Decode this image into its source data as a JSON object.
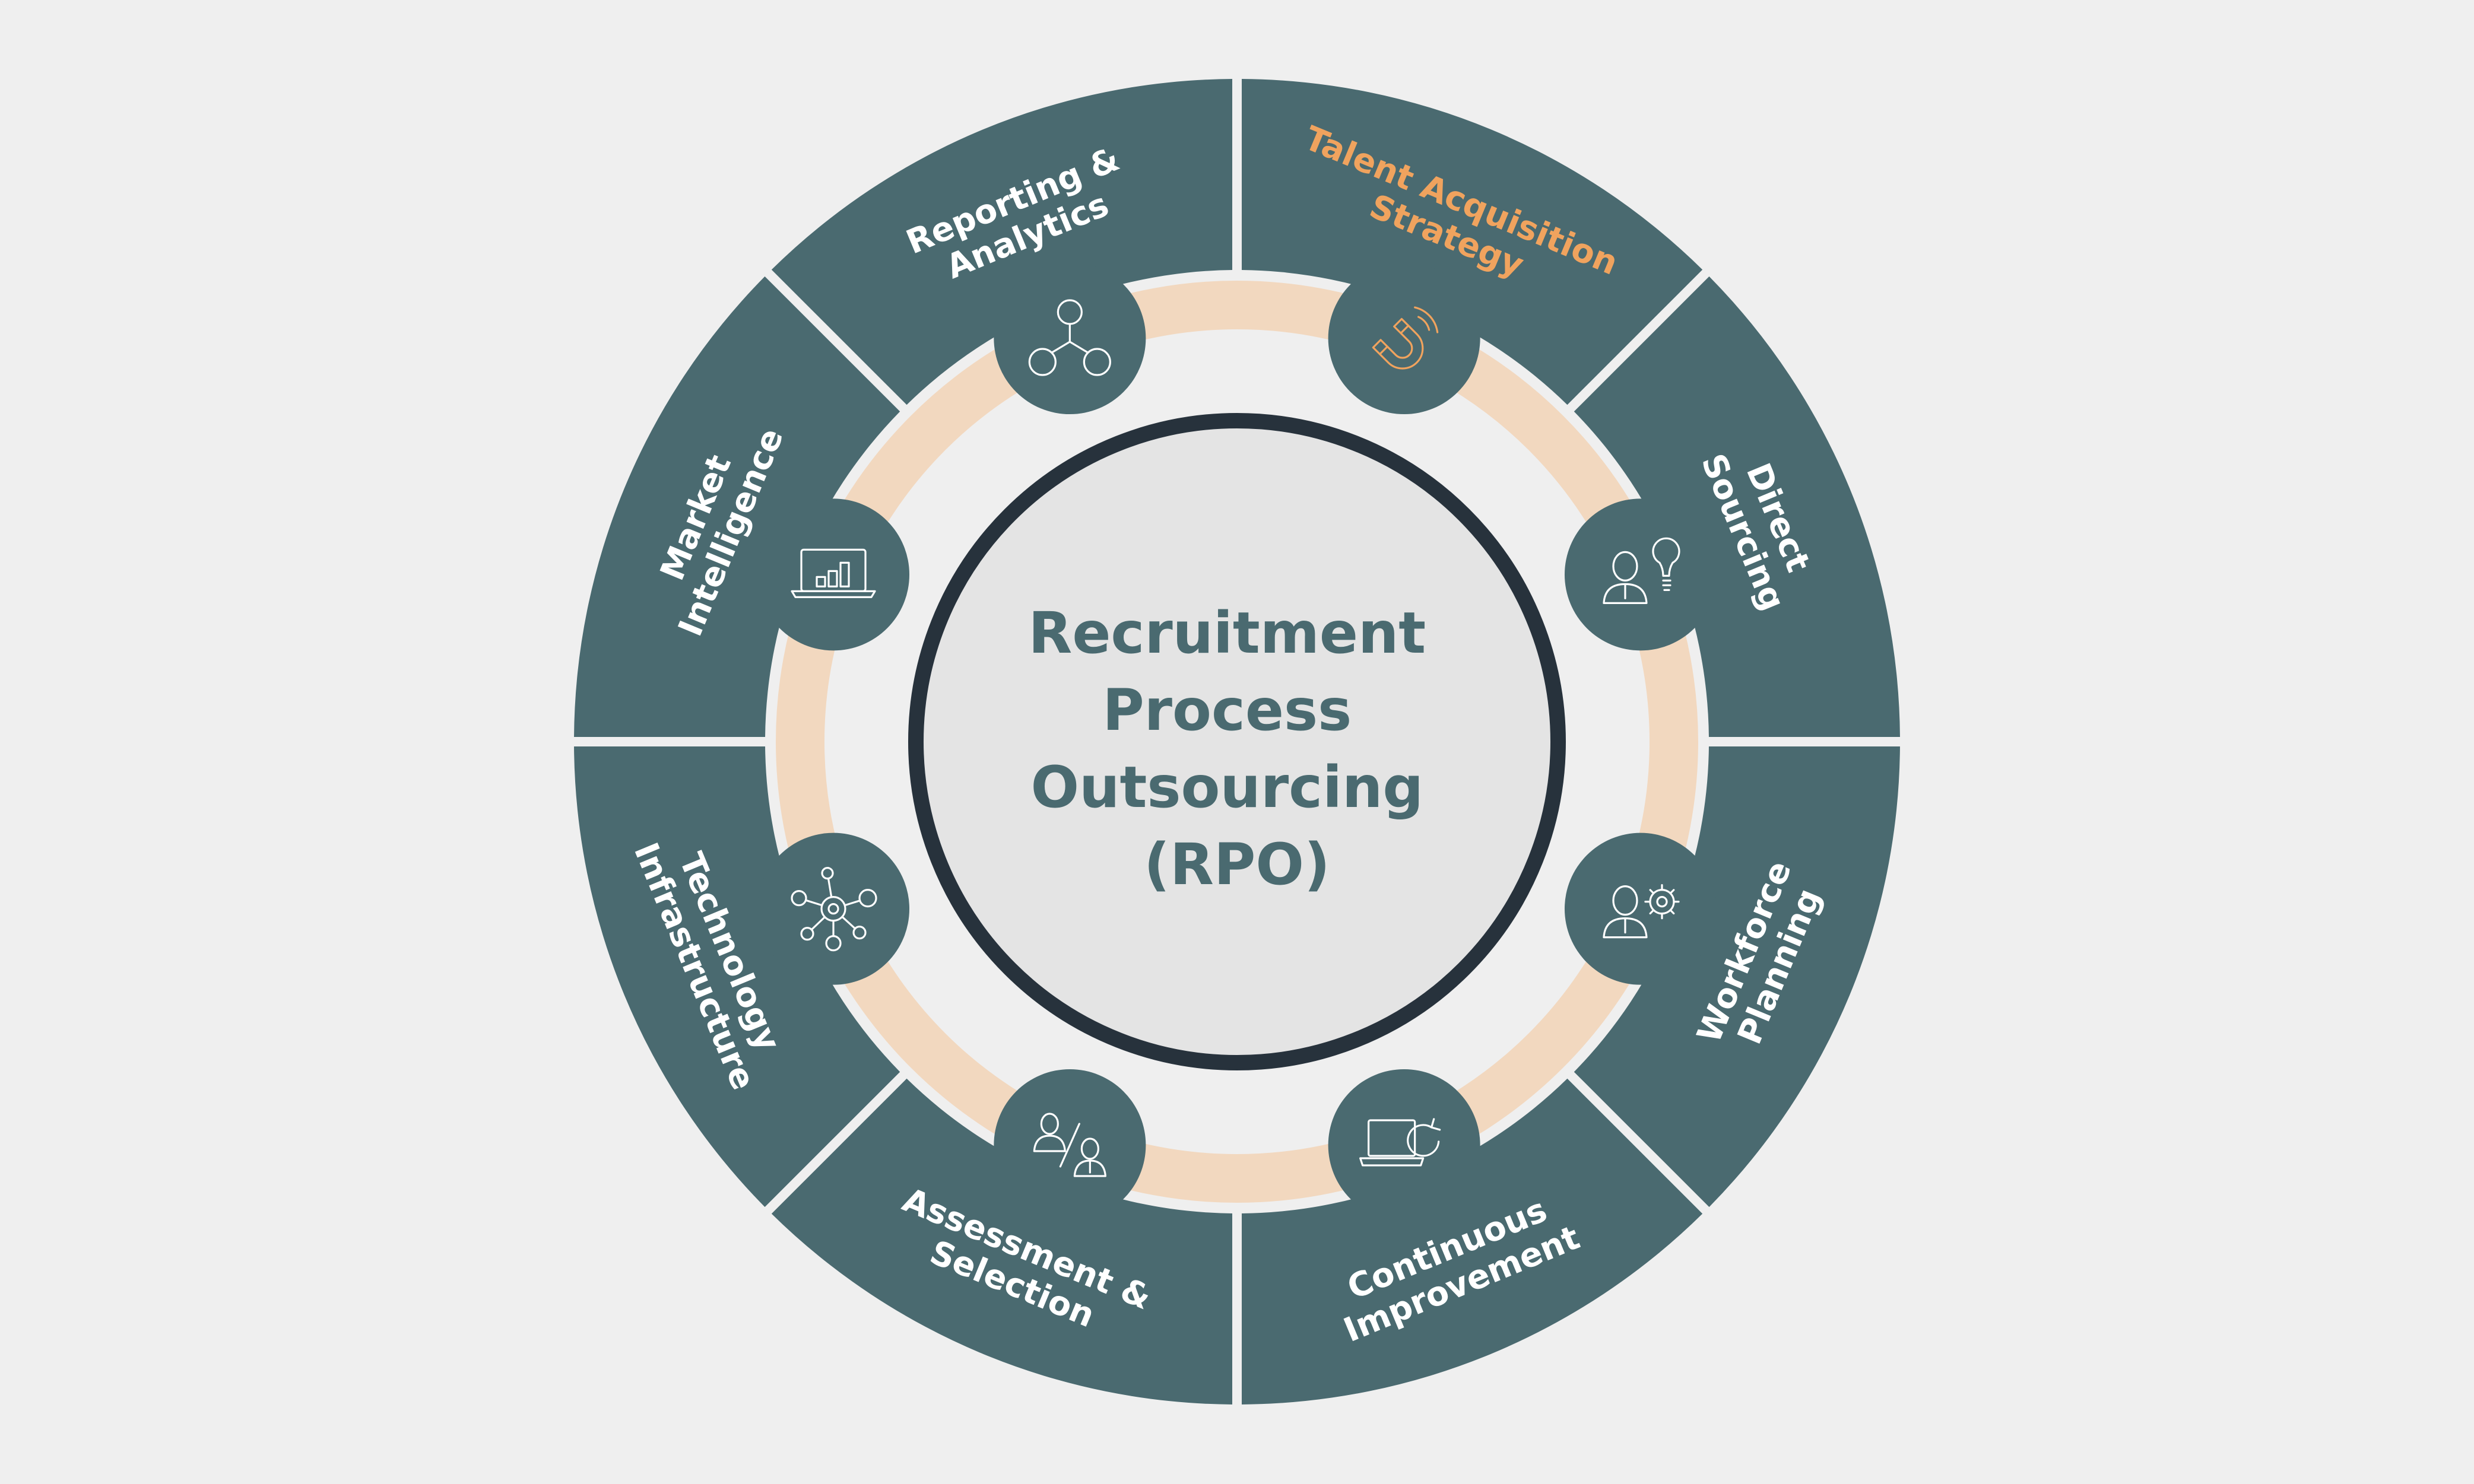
{
  "colors": {
    "background": "#efefef",
    "segment_fill": "#4a6a70",
    "segment_text": "#ffffff",
    "active_text": "#f0a35e",
    "ring_track": "#f2d8bf",
    "center_fill": "#e4e4e4",
    "center_border": "#27323c",
    "center_text": "#4a6a70"
  },
  "center": {
    "title_lines": [
      "Recruitment",
      "Process",
      "Outsourcing",
      "(RPO)"
    ]
  },
  "segments": [
    {
      "lines": [
        "Talent Acquisition",
        "Strategy"
      ],
      "highlighted": true,
      "icon": "magnet-icon"
    },
    {
      "lines": [
        "Direct",
        "Sourcing"
      ],
      "highlighted": false,
      "icon": "person-lightbulb-icon"
    },
    {
      "lines": [
        "Workforce",
        "Planning"
      ],
      "highlighted": false,
      "icon": "person-gear-icon"
    },
    {
      "lines": [
        "Continuous",
        "Improvement"
      ],
      "highlighted": false,
      "icon": "laptop-refresh-icon"
    },
    {
      "lines": [
        "Assessment &",
        "Selection"
      ],
      "highlighted": false,
      "icon": "people-compare-icon"
    },
    {
      "lines": [
        "Technology",
        "Infrastructure"
      ],
      "highlighted": false,
      "icon": "network-hub-icon"
    },
    {
      "lines": [
        "Market",
        "Intelligence"
      ],
      "highlighted": false,
      "icon": "laptop-chart-icon"
    },
    {
      "lines": [
        "Reporting &",
        "Analytics"
      ],
      "highlighted": false,
      "icon": "node-tree-icon"
    }
  ]
}
